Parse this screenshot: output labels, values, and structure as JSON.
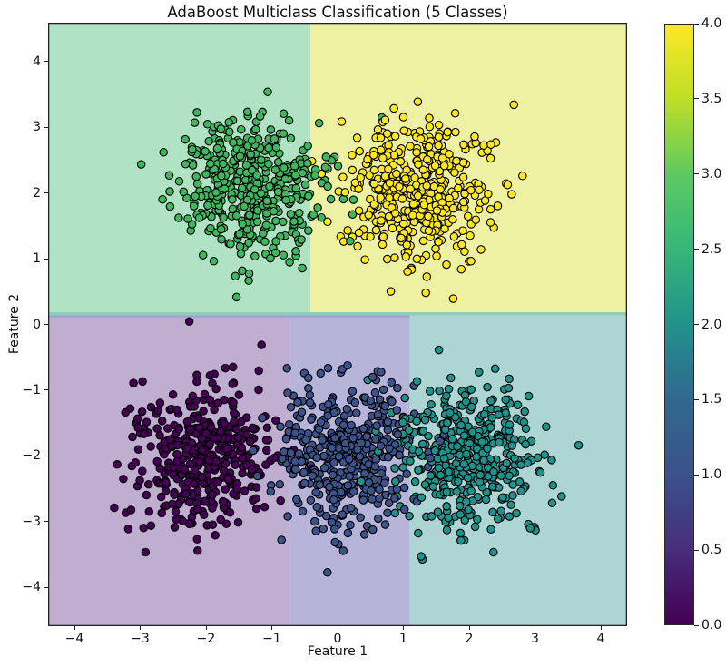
{
  "chart_data": {
    "type": "scatter",
    "title": "AdaBoost Multiclass Classification (5 Classes)",
    "xlabel": "Feature 1",
    "ylabel": "Feature 2",
    "xlim": [
      -4.4,
      4.4
    ],
    "ylim": [
      -4.59,
      4.59
    ],
    "grid": false,
    "x_ticks": [
      {
        "value": -4,
        "label": "−4"
      },
      {
        "value": -3,
        "label": "−3"
      },
      {
        "value": -2,
        "label": "−2"
      },
      {
        "value": -1,
        "label": "−1"
      },
      {
        "value": 0,
        "label": "0"
      },
      {
        "value": 1,
        "label": "1"
      },
      {
        "value": 2,
        "label": "2"
      },
      {
        "value": 3,
        "label": "3"
      },
      {
        "value": 4,
        "label": "4"
      }
    ],
    "y_ticks": [
      {
        "value": -4,
        "label": "−4"
      },
      {
        "value": -3,
        "label": "−3"
      },
      {
        "value": -2,
        "label": "−2"
      },
      {
        "value": -1,
        "label": "−1"
      },
      {
        "value": 0,
        "label": "0"
      },
      {
        "value": 1,
        "label": "1"
      },
      {
        "value": 2,
        "label": "2"
      },
      {
        "value": 3,
        "label": "3"
      },
      {
        "value": 4,
        "label": "4"
      }
    ],
    "decision_regions": [
      {
        "name": "class-3-region",
        "x": [
          -4.4,
          -0.41
        ],
        "y": [
          0.186,
          4.59
        ],
        "color": "#b0e2c4"
      },
      {
        "name": "class-4-region",
        "x": [
          -0.41,
          4.4
        ],
        "y": [
          0.186,
          4.59
        ],
        "color": "#eef0a2"
      },
      {
        "name": "class-2-strip",
        "x": [
          -4.4,
          4.4
        ],
        "y": [
          0.138,
          0.186
        ],
        "color": "#8ecdbb"
      },
      {
        "name": "class-1-strip",
        "x": [
          -4.4,
          1.1
        ],
        "y": [
          0.104,
          0.138
        ],
        "color": "#a0a3cf"
      },
      {
        "name": "class-0-region",
        "x": [
          -4.4,
          -0.73
        ],
        "y": [
          -4.59,
          0.104
        ],
        "color": "#bfaed0"
      },
      {
        "name": "class-1-region",
        "x": [
          -0.73,
          1.1
        ],
        "y": [
          -4.59,
          0.104
        ],
        "color": "#b7b4d9"
      },
      {
        "name": "class-2-region",
        "x": [
          1.1,
          4.4
        ],
        "y": [
          -4.59,
          0.138
        ],
        "color": "#add5d3"
      }
    ],
    "clusters": [
      {
        "label": "class 0",
        "value": 0,
        "center": [
          -2.05,
          -2.0
        ],
        "std": 0.55,
        "count": 420,
        "color": "#440154"
      },
      {
        "label": "class 1",
        "value": 1,
        "center": [
          0.1,
          -2.0
        ],
        "std": 0.55,
        "count": 420,
        "color": "#3b528b"
      },
      {
        "label": "class 2",
        "value": 2,
        "center": [
          2.0,
          -2.0
        ],
        "std": 0.55,
        "count": 420,
        "color": "#21918c"
      },
      {
        "label": "class 3",
        "value": 3,
        "center": [
          -1.3,
          2.05
        ],
        "std": 0.55,
        "count": 420,
        "color": "#40b75e"
      },
      {
        "label": "class 4",
        "value": 4,
        "center": [
          1.25,
          2.05
        ],
        "std": 0.55,
        "count": 420,
        "color": "#fde725"
      }
    ],
    "marker": {
      "radius": 4.2,
      "edge_color": "#000000",
      "edge_width": 1.1
    },
    "colorbar": {
      "min": 0,
      "max": 4,
      "ticks": [
        {
          "value": 0.0,
          "label": "0.0"
        },
        {
          "value": 0.5,
          "label": "0.5"
        },
        {
          "value": 1.0,
          "label": "1.0"
        },
        {
          "value": 1.5,
          "label": "1.5"
        },
        {
          "value": 2.0,
          "label": "2.0"
        },
        {
          "value": 2.5,
          "label": "2.5"
        },
        {
          "value": 3.0,
          "label": "3.0"
        },
        {
          "value": 3.5,
          "label": "3.5"
        },
        {
          "value": 4.0,
          "label": "4.0"
        }
      ],
      "gradient_top_to_bottom": [
        "#fde725",
        "#bddf26",
        "#5ec962",
        "#35b779",
        "#21918c",
        "#31688e",
        "#3b528b",
        "#472d7b",
        "#440154"
      ]
    }
  }
}
